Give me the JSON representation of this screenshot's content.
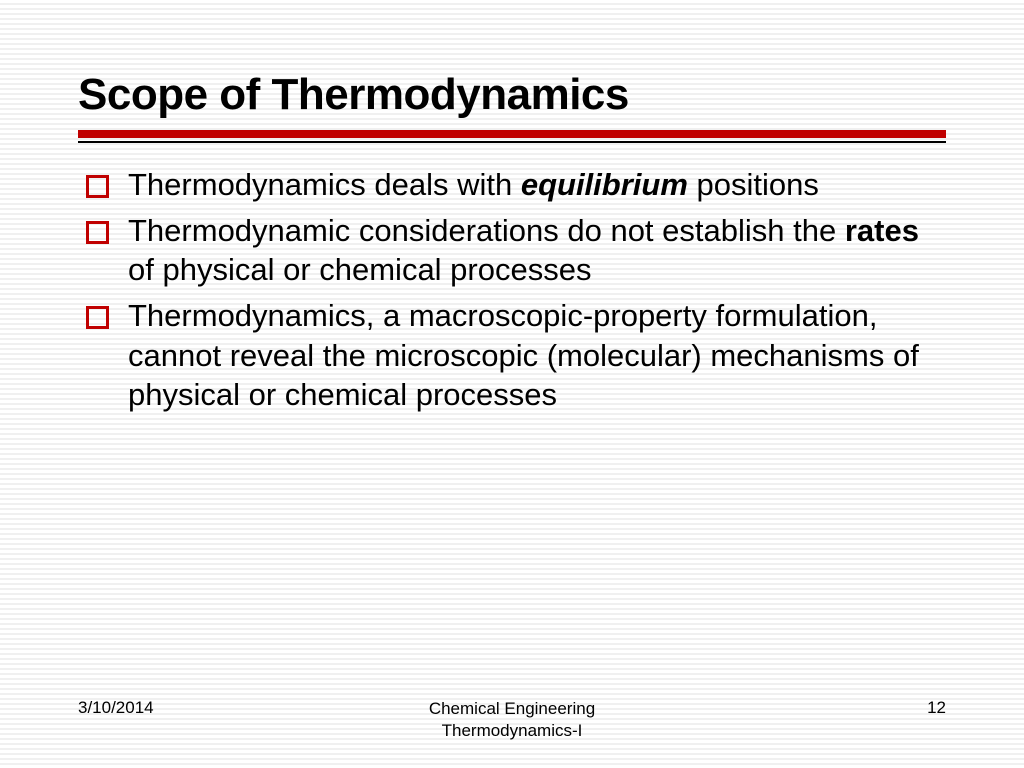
{
  "slide": {
    "title": "Scope of Thermodynamics",
    "title_color": "#000000",
    "title_fontsize": 44,
    "rule_thick_color": "#c00000",
    "rule_thin_color": "#000000",
    "bullet_border_color": "#c00000",
    "body_fontsize": 31,
    "background_stripe_light": "#ffffff",
    "background_stripe_dark": "#f0f0f0",
    "bullets": [
      {
        "pre": "Thermodynamics deals with ",
        "em": "equilibrium",
        "post": " positions",
        "em_style": "bold-italic"
      },
      {
        "pre": "Thermodynamic considerations do not establish the ",
        "em": "rates",
        "post": " of physical or chemical processes",
        "em_style": "bold"
      },
      {
        "pre": "Thermodynamics, a macroscopic-property formulation, cannot reveal the microscopic (molecular) mechanisms of physical or chemical processes",
        "em": "",
        "post": "",
        "em_style": ""
      }
    ]
  },
  "footer": {
    "date": "3/10/2014",
    "center_line1": "Chemical Engineering",
    "center_line2": "Thermodynamics-I",
    "page": "12",
    "fontsize": 17
  }
}
